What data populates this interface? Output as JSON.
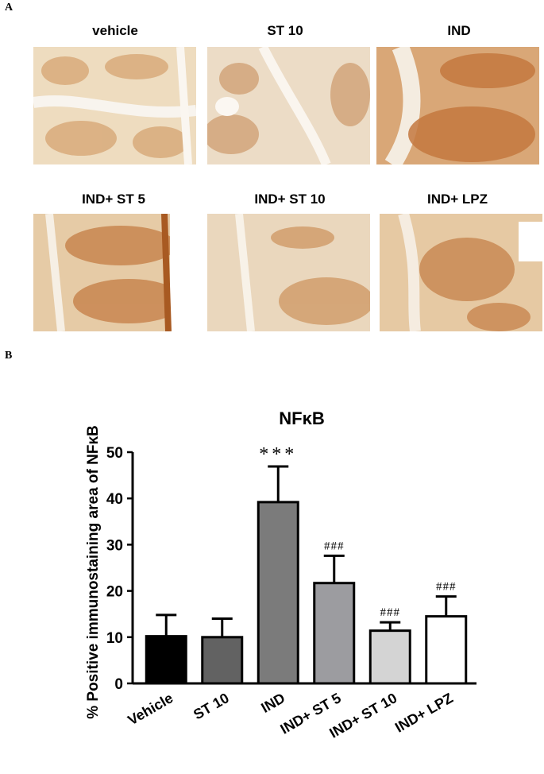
{
  "figure": {
    "panel_a": "A",
    "panel_b": "B",
    "images": [
      {
        "label": "vehicle"
      },
      {
        "label": "ST 10"
      },
      {
        "label": "IND"
      },
      {
        "label": "IND+ ST 5"
      },
      {
        "label": "IND+ ST 10"
      },
      {
        "label": "IND+ LPZ"
      }
    ]
  },
  "chart_data": {
    "type": "bar",
    "title": "NFκB",
    "ylabel": "% Positive immunostaining area of NFκB",
    "xlabel": "",
    "ylim": [
      0,
      50
    ],
    "yticks": [
      0,
      10,
      20,
      30,
      40,
      50
    ],
    "grid": false,
    "categories": [
      "Vehicle",
      "ST 10",
      "IND",
      "IND+ ST 5",
      "IND+ ST 10",
      "IND+ LPZ"
    ],
    "values": [
      10.2,
      10.0,
      39.2,
      21.7,
      11.4,
      14.5
    ],
    "errors": [
      4.6,
      4.0,
      7.7,
      5.9,
      1.8,
      4.3
    ],
    "annotations": [
      "",
      "",
      "***",
      "###",
      "###",
      "###"
    ],
    "bar_colors": [
      "#000000",
      "#626262",
      "#7b7b7b",
      "#9c9ca0",
      "#d4d4d4",
      "#ffffff"
    ]
  }
}
